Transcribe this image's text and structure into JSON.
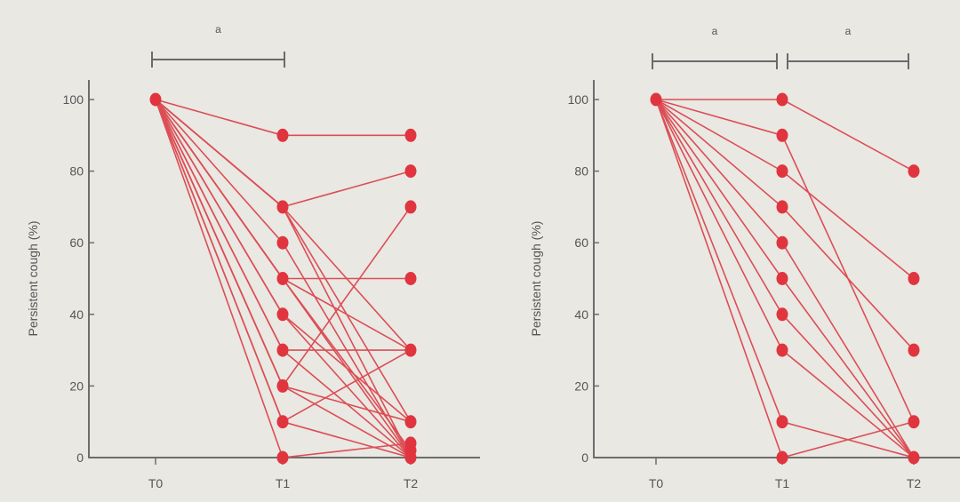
{
  "chart_data": [
    {
      "type": "line",
      "ylabel": "Persistent cough (%)",
      "xlabel": "",
      "categories": [
        "T0",
        "T1",
        "T2"
      ],
      "yticks": [
        "0",
        "20",
        "40",
        "60",
        "80",
        "100"
      ],
      "ylim": [
        0,
        100
      ],
      "grid": false,
      "significance": [
        {
          "from": "T0",
          "to": "T1",
          "label": "a"
        }
      ],
      "series": [
        {
          "values": [
            100,
            90,
            90
          ]
        },
        {
          "values": [
            100,
            70,
            80
          ]
        },
        {
          "values": [
            100,
            70,
            30
          ]
        },
        {
          "values": [
            100,
            70,
            10
          ]
        },
        {
          "values": [
            100,
            70,
            0
          ]
        },
        {
          "values": [
            100,
            60,
            0
          ]
        },
        {
          "values": [
            100,
            50,
            50
          ]
        },
        {
          "values": [
            100,
            50,
            30
          ]
        },
        {
          "values": [
            100,
            50,
            2
          ]
        },
        {
          "values": [
            100,
            50,
            0
          ]
        },
        {
          "values": [
            100,
            40,
            10
          ]
        },
        {
          "values": [
            100,
            40,
            0
          ]
        },
        {
          "values": [
            100,
            30,
            30
          ]
        },
        {
          "values": [
            100,
            30,
            0
          ]
        },
        {
          "values": [
            100,
            20,
            70
          ]
        },
        {
          "values": [
            100,
            20,
            10
          ]
        },
        {
          "values": [
            100,
            20,
            0
          ]
        },
        {
          "values": [
            100,
            10,
            30
          ]
        },
        {
          "values": [
            100,
            10,
            0
          ]
        },
        {
          "values": [
            100,
            0,
            4
          ]
        }
      ]
    },
    {
      "type": "line",
      "ylabel": "Persistent cough (%)",
      "xlabel": "",
      "categories": [
        "T0",
        "T1",
        "T2"
      ],
      "yticks": [
        "0",
        "20",
        "40",
        "60",
        "80",
        "100"
      ],
      "ylim": [
        0,
        100
      ],
      "grid": false,
      "significance": [
        {
          "from": "T0",
          "to": "T1",
          "label": "a"
        },
        {
          "from": "T1",
          "to": "T2",
          "label": "a"
        }
      ],
      "series": [
        {
          "values": [
            100,
            100,
            80
          ]
        },
        {
          "values": [
            100,
            90,
            10
          ]
        },
        {
          "values": [
            100,
            80,
            50
          ]
        },
        {
          "values": [
            100,
            70,
            30
          ]
        },
        {
          "values": [
            100,
            60,
            0
          ]
        },
        {
          "values": [
            100,
            50,
            0
          ]
        },
        {
          "values": [
            100,
            40,
            0
          ]
        },
        {
          "values": [
            100,
            30,
            0
          ]
        },
        {
          "values": [
            100,
            10,
            0
          ]
        },
        {
          "values": [
            100,
            0,
            null
          ]
        }
      ]
    }
  ]
}
